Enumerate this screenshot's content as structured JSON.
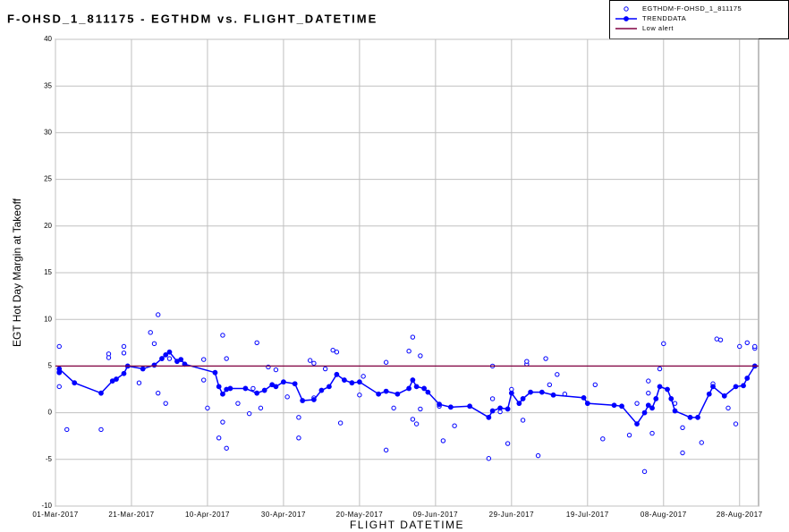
{
  "chart_data": {
    "type": "line",
    "title": "F-OHSD_1_811175 - EGTHDM vs. FLIGHT_DATETIME",
    "x_label": "FLIGHT DATETIME",
    "y_label": "EGT Hot Day Margin at Takeoff",
    "xlim": [
      "2017-03-01",
      "2017-09-02"
    ],
    "xticks": [
      {
        "value": "2017-03-01",
        "label": "01-Mar-2017"
      },
      {
        "value": "2017-03-21",
        "label": "21-Mar-2017"
      },
      {
        "value": "2017-04-10",
        "label": "10-Apr-2017"
      },
      {
        "value": "2017-04-30",
        "label": "30-Apr-2017"
      },
      {
        "value": "2017-05-20",
        "label": "20-May-2017"
      },
      {
        "value": "2017-06-09",
        "label": "09-Jun-2017"
      },
      {
        "value": "2017-06-29",
        "label": "29-Jun-2017"
      },
      {
        "value": "2017-07-19",
        "label": "19-Jul-2017"
      },
      {
        "value": "2017-08-08",
        "label": "08-Aug-2017"
      },
      {
        "value": "2017-08-28",
        "label": "28-Aug-2017"
      }
    ],
    "ylim": [
      -10,
      40
    ],
    "yticks": [
      -10,
      -5,
      0,
      5,
      10,
      15,
      20,
      25,
      30,
      35,
      40
    ],
    "grid": true,
    "legend": "top-right",
    "series": [
      {
        "name": "EGTHDM-F-OHSD_1_811175",
        "color": "#0000ff",
        "style": "markers",
        "x": [
          "2017-03-02",
          "2017-03-02",
          "2017-03-02",
          "2017-03-04",
          "2017-03-13",
          "2017-03-15",
          "2017-03-15",
          "2017-03-19",
          "2017-03-19",
          "2017-03-23",
          "2017-03-26",
          "2017-03-27",
          "2017-03-28",
          "2017-03-28",
          "2017-03-30",
          "2017-03-31",
          "2017-04-09",
          "2017-04-09",
          "2017-04-10",
          "2017-04-13",
          "2017-04-14",
          "2017-04-14",
          "2017-04-15",
          "2017-04-15",
          "2017-04-18",
          "2017-04-21",
          "2017-04-22",
          "2017-04-23",
          "2017-04-24",
          "2017-04-26",
          "2017-04-28",
          "2017-05-01",
          "2017-05-04",
          "2017-05-04",
          "2017-05-07",
          "2017-05-08",
          "2017-05-08",
          "2017-05-11",
          "2017-05-13",
          "2017-05-14",
          "2017-05-15",
          "2017-05-20",
          "2017-05-21",
          "2017-05-27",
          "2017-05-27",
          "2017-05-29",
          "2017-06-02",
          "2017-06-03",
          "2017-06-03",
          "2017-06-04",
          "2017-06-05",
          "2017-06-05",
          "2017-06-10",
          "2017-06-11",
          "2017-06-14",
          "2017-06-23",
          "2017-06-24",
          "2017-06-24",
          "2017-06-26",
          "2017-06-28",
          "2017-06-29",
          "2017-07-02",
          "2017-07-03",
          "2017-07-03",
          "2017-07-06",
          "2017-07-08",
          "2017-07-09",
          "2017-07-11",
          "2017-07-13",
          "2017-07-21",
          "2017-07-23",
          "2017-07-30",
          "2017-08-01",
          "2017-08-03",
          "2017-08-04",
          "2017-08-04",
          "2017-08-05",
          "2017-08-07",
          "2017-08-08",
          "2017-08-11",
          "2017-08-13",
          "2017-08-13",
          "2017-08-18",
          "2017-08-21",
          "2017-08-22",
          "2017-08-23",
          "2017-08-25",
          "2017-08-27",
          "2017-08-28",
          "2017-08-30",
          "2017-09-01",
          "2017-09-01"
        ],
        "values": [
          7.1,
          2.8,
          4.4,
          -1.8,
          -1.8,
          6.3,
          5.9,
          7.1,
          6.4,
          3.2,
          8.6,
          7.4,
          2.1,
          10.5,
          1.0,
          5.8,
          5.7,
          3.5,
          0.5,
          -2.7,
          -1.0,
          8.3,
          -3.8,
          5.8,
          1.0,
          -0.1,
          2.6,
          7.5,
          0.5,
          4.9,
          4.6,
          1.7,
          -0.5,
          -2.7,
          5.6,
          5.3,
          1.6,
          4.7,
          6.7,
          6.5,
          -1.1,
          1.9,
          3.9,
          -4.0,
          5.4,
          0.5,
          6.6,
          8.1,
          -0.7,
          -1.2,
          6.1,
          0.4,
          0.7,
          -3.0,
          -1.4,
          -4.9,
          5.0,
          1.5,
          0.1,
          -3.3,
          2.5,
          -0.8,
          5.2,
          5.5,
          -4.6,
          5.8,
          3.0,
          4.1,
          2.0,
          3.0,
          -2.8,
          -2.4,
          1.0,
          -6.3,
          2.1,
          3.4,
          -2.2,
          4.7,
          7.4,
          1.0,
          -1.6,
          -4.3,
          -3.2,
          3.1,
          7.9,
          7.8,
          0.5,
          -1.2,
          7.1,
          7.5,
          6.9,
          7.1
        ]
      },
      {
        "name": "TRENDDATA",
        "color": "#0000ff",
        "style": "lines+markers",
        "x": [
          "2017-03-02",
          "2017-03-02",
          "2017-03-06",
          "2017-03-13",
          "2017-03-16",
          "2017-03-17",
          "2017-03-19",
          "2017-03-20",
          "2017-03-24",
          "2017-03-27",
          "2017-03-29",
          "2017-03-30",
          "2017-03-31",
          "2017-04-02",
          "2017-04-03",
          "2017-04-04",
          "2017-04-12",
          "2017-04-13",
          "2017-04-14",
          "2017-04-15",
          "2017-04-16",
          "2017-04-20",
          "2017-04-23",
          "2017-04-25",
          "2017-04-27",
          "2017-04-28",
          "2017-04-30",
          "2017-05-03",
          "2017-05-05",
          "2017-05-08",
          "2017-05-10",
          "2017-05-12",
          "2017-05-14",
          "2017-05-16",
          "2017-05-18",
          "2017-05-20",
          "2017-05-25",
          "2017-05-27",
          "2017-05-30",
          "2017-06-02",
          "2017-06-03",
          "2017-06-04",
          "2017-06-06",
          "2017-06-07",
          "2017-06-10",
          "2017-06-13",
          "2017-06-18",
          "2017-06-23",
          "2017-06-24",
          "2017-06-26",
          "2017-06-28",
          "2017-06-29",
          "2017-07-01",
          "2017-07-02",
          "2017-07-04",
          "2017-07-07",
          "2017-07-10",
          "2017-07-18",
          "2017-07-19",
          "2017-07-26",
          "2017-07-28",
          "2017-08-01",
          "2017-08-03",
          "2017-08-04",
          "2017-08-05",
          "2017-08-06",
          "2017-08-07",
          "2017-08-09",
          "2017-08-10",
          "2017-08-11",
          "2017-08-15",
          "2017-08-17",
          "2017-08-20",
          "2017-08-21",
          "2017-08-24",
          "2017-08-27",
          "2017-08-29",
          "2017-08-30",
          "2017-09-01"
        ],
        "values": [
          4.3,
          4.7,
          3.2,
          2.1,
          3.4,
          3.6,
          4.2,
          5.0,
          4.7,
          5.1,
          5.8,
          6.2,
          6.5,
          5.5,
          5.7,
          5.2,
          4.3,
          2.8,
          2.0,
          2.5,
          2.6,
          2.6,
          2.1,
          2.4,
          3.0,
          2.8,
          3.3,
          3.1,
          1.3,
          1.4,
          2.4,
          2.8,
          4.1,
          3.5,
          3.2,
          3.3,
          2.0,
          2.3,
          2.0,
          2.6,
          3.5,
          2.8,
          2.6,
          2.2,
          0.9,
          0.6,
          0.7,
          -0.5,
          0.2,
          0.5,
          0.4,
          2.1,
          1.0,
          1.5,
          2.2,
          2.2,
          1.9,
          1.6,
          1.0,
          0.8,
          0.7,
          -1.2,
          0.0,
          0.8,
          0.5,
          1.5,
          2.8,
          2.5,
          1.5,
          0.2,
          -0.5,
          -0.5,
          2.0,
          2.8,
          1.8,
          2.8,
          2.9,
          3.7,
          5.0
        ]
      },
      {
        "name": "Low alert",
        "color": "#800040",
        "style": "line",
        "x": [
          "2017-03-01",
          "2017-09-02"
        ],
        "values": [
          5,
          5
        ]
      }
    ]
  }
}
